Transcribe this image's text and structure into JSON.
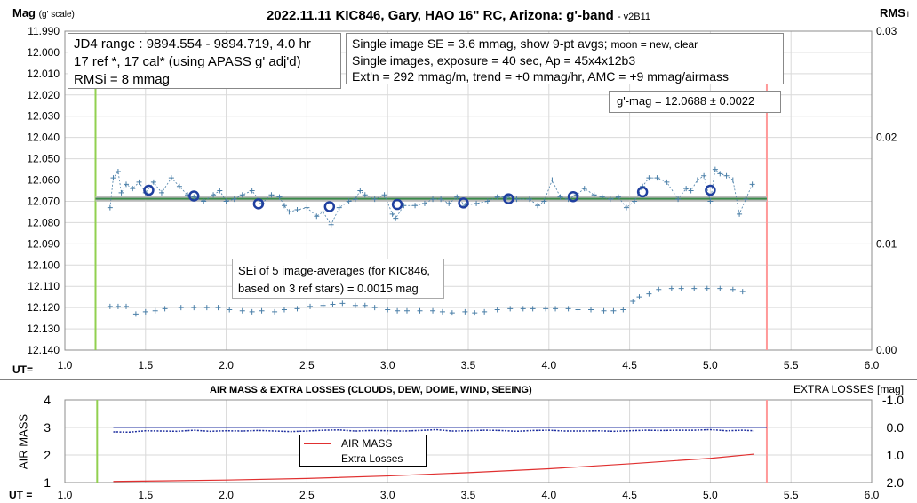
{
  "colors": {
    "background": "#ffffff",
    "gridline": "#d9d9d9",
    "series_marker": "#4a7fa8",
    "avg_circle": "#1f3f9f",
    "trend_line": "#3b8a4a",
    "start_marker": "#92d050",
    "end_marker": "#ff9999",
    "airmass_line": "#e03030",
    "extra_losses_line": "#1f2f9f"
  },
  "chart_data": [
    {
      "type": "scatter",
      "title": "2022.11.11 KIC846, Gary, HAO 16\" RC, Arizona: g'-band",
      "title_suffix": "- v2B11",
      "ylabel": "Mag",
      "ylabel_note": "(g' scale)",
      "y2label": "RMS",
      "y2label_note": "i",
      "xlabel": "UT=",
      "xlim": [
        1.0,
        6.0
      ],
      "ylim": [
        12.14,
        11.99
      ],
      "y_reversed": true,
      "y2lim": [
        0.0,
        0.03
      ],
      "x_ticks": [
        "1.0",
        "1.5",
        "2.0",
        "2.5",
        "3.0",
        "3.5",
        "4.0",
        "4.5",
        "5.0",
        "5.5",
        "6.0"
      ],
      "y_ticks": [
        "11.990",
        "12.000",
        "12.010",
        "12.020",
        "12.030",
        "12.040",
        "12.050",
        "12.060",
        "12.070",
        "12.080",
        "12.090",
        "12.100",
        "12.110",
        "12.120",
        "12.130",
        "12.140"
      ],
      "y2_ticks": [
        "0.03",
        "0.02",
        "0.01",
        "0.00"
      ],
      "grid": true,
      "start_marker_x": 1.19,
      "end_marker_x": 5.35,
      "trend_line": {
        "y": 12.0688,
        "x": [
          1.19,
          5.35
        ]
      },
      "info_box_1": [
        "JD4 range : 9894.554 - 9894.719,  4.0 hr",
        "17 ref *, 17 cal* (using APASS g' adj'd)",
        "RMSi = 8 mmag"
      ],
      "info_box_2_line1": "Single image SE = 3.6 mmag, show  9-pt avgs;",
      "info_box_2_line1_small": "moon = new, clear",
      "info_box_2_lines": [
        "Single images, exposure = 40 sec, Ap = 45x4x12b3",
        "Ext'n = 292 mmag/m, trend = +0 mmag/hr, AMC = +9 mmag/airmass"
      ],
      "result_box": "g'-mag = 12.0688 ± 0.0022",
      "sei_box": [
        "SEi of 5 image-averages (for KIC846,",
        "based on 3 ref stars) = 0.0015 mag"
      ],
      "series": [
        {
          "kind": "single-image magnitudes",
          "x": [
            1.28,
            1.3,
            1.33,
            1.35,
            1.38,
            1.42,
            1.46,
            1.5,
            1.55,
            1.6,
            1.66,
            1.71,
            1.76,
            1.8,
            1.86,
            1.92,
            1.96,
            2.0,
            2.05,
            2.1,
            2.16,
            2.22,
            2.28,
            2.33,
            2.36,
            2.39,
            2.44,
            2.5,
            2.56,
            2.6,
            2.65,
            2.7,
            2.76,
            2.8,
            2.83,
            2.86,
            2.92,
            2.98,
            3.03,
            3.05,
            3.1,
            3.17,
            3.23,
            3.28,
            3.33,
            3.38,
            3.43,
            3.48,
            3.55,
            3.62,
            3.68,
            3.74,
            3.8,
            3.88,
            3.93,
            3.97,
            4.02,
            4.07,
            4.12,
            4.17,
            4.22,
            4.28,
            4.33,
            4.38,
            4.43,
            4.48,
            4.53,
            4.58,
            4.62,
            4.67,
            4.73,
            4.8,
            4.85,
            4.88,
            4.92,
            4.96,
            5.0,
            5.03,
            5.06,
            5.1,
            5.14,
            5.18,
            5.22,
            5.26
          ],
          "y": [
            12.073,
            12.059,
            12.056,
            12.066,
            12.062,
            12.064,
            12.061,
            12.066,
            12.061,
            12.066,
            12.059,
            12.063,
            12.067,
            12.068,
            12.07,
            12.067,
            12.065,
            12.07,
            12.069,
            12.067,
            12.065,
            12.071,
            12.067,
            12.068,
            12.072,
            12.075,
            12.074,
            12.073,
            12.077,
            12.075,
            12.081,
            12.073,
            12.07,
            12.069,
            12.065,
            12.067,
            12.069,
            12.067,
            12.076,
            12.078,
            12.072,
            12.072,
            12.071,
            12.069,
            12.069,
            12.071,
            12.068,
            12.072,
            12.071,
            12.07,
            12.068,
            12.068,
            12.069,
            12.069,
            12.072,
            12.07,
            12.06,
            12.068,
            12.069,
            12.067,
            12.064,
            12.067,
            12.068,
            12.069,
            12.068,
            12.073,
            12.07,
            12.063,
            12.059,
            12.059,
            12.061,
            12.069,
            12.064,
            12.065,
            12.06,
            12.058,
            12.07,
            12.055,
            12.057,
            12.058,
            12.06,
            12.076,
            12.069,
            12.062
          ]
        },
        {
          "kind": "9-pt averages",
          "x": [
            1.52,
            1.8,
            2.2,
            2.64,
            3.06,
            3.47,
            3.75,
            4.15,
            4.58,
            5.0
          ],
          "y": [
            12.0648,
            12.0675,
            12.0712,
            12.0725,
            12.0715,
            12.0708,
            12.0688,
            12.0678,
            12.0656,
            12.0648
          ]
        },
        {
          "kind": "RMSi (right axis)",
          "x": [
            1.28,
            1.33,
            1.38,
            1.44,
            1.5,
            1.56,
            1.62,
            1.72,
            1.8,
            1.88,
            1.95,
            2.02,
            2.1,
            2.16,
            2.22,
            2.3,
            2.36,
            2.44,
            2.52,
            2.6,
            2.66,
            2.72,
            2.8,
            2.86,
            2.92,
            3.0,
            3.06,
            3.12,
            3.2,
            3.28,
            3.34,
            3.4,
            3.48,
            3.54,
            3.6,
            3.68,
            3.76,
            3.84,
            3.9,
            3.98,
            4.04,
            4.12,
            4.18,
            4.26,
            4.34,
            4.4,
            4.46,
            4.52,
            4.56,
            4.62,
            4.68,
            4.76,
            4.82,
            4.9,
            4.98,
            5.06,
            5.14,
            5.2
          ],
          "y": [
            0.0041,
            0.0041,
            0.0041,
            0.0034,
            0.0036,
            0.0037,
            0.0039,
            0.004,
            0.004,
            0.004,
            0.004,
            0.0038,
            0.0037,
            0.0036,
            0.0037,
            0.0036,
            0.0038,
            0.0039,
            0.0041,
            0.0042,
            0.0043,
            0.0044,
            0.0042,
            0.0042,
            0.004,
            0.0038,
            0.0037,
            0.0037,
            0.0037,
            0.0037,
            0.0036,
            0.0035,
            0.0036,
            0.0035,
            0.0036,
            0.0038,
            0.0039,
            0.0039,
            0.0039,
            0.0039,
            0.0039,
            0.0039,
            0.0038,
            0.0038,
            0.0037,
            0.0037,
            0.0038,
            0.0046,
            0.005,
            0.0053,
            0.0057,
            0.0058,
            0.0058,
            0.0058,
            0.0058,
            0.0058,
            0.0057,
            0.0055
          ]
        }
      ]
    },
    {
      "type": "line",
      "title": "AIR MASS & EXTRA LOSSES (CLOUDS, DEW, DOME, WIND, SEEING)",
      "ylabel": "AIR MASS",
      "y2label": "EXTRA LOSSES [mag]",
      "xlabel": "UT =",
      "xlim": [
        1.0,
        6.0
      ],
      "ylim": [
        1,
        4
      ],
      "y2lim": [
        2.0,
        -1.0
      ],
      "x_ticks": [
        "1.0",
        "1.5",
        "2.0",
        "2.5",
        "3.0",
        "3.5",
        "4.0",
        "4.5",
        "5.0",
        "5.5",
        "6.0"
      ],
      "y_ticks": [
        "4",
        "3",
        "2",
        "1"
      ],
      "y2_ticks": [
        "-1.0",
        "0.0",
        "1.0",
        "2.0"
      ],
      "grid": true,
      "start_marker_x": 1.2,
      "end_marker_x": 5.35,
      "reference_line_y": 3.0,
      "series": [
        {
          "name": "AIR MASS",
          "x": [
            1.3,
            1.6,
            2.0,
            2.5,
            3.0,
            3.5,
            4.0,
            4.5,
            5.0,
            5.27
          ],
          "y": [
            1.04,
            1.06,
            1.09,
            1.15,
            1.24,
            1.36,
            1.5,
            1.68,
            1.88,
            2.03
          ]
        },
        {
          "name": "Extra Losses",
          "x": [
            1.3,
            1.4,
            1.5,
            1.6,
            1.7,
            1.8,
            1.9,
            2.0,
            2.1,
            2.2,
            2.3,
            2.4,
            2.5,
            2.6,
            2.7,
            2.8,
            2.9,
            3.0,
            3.1,
            3.2,
            3.3,
            3.4,
            3.5,
            3.6,
            3.7,
            3.8,
            3.9,
            4.0,
            4.1,
            4.2,
            4.3,
            4.4,
            4.5,
            4.6,
            4.7,
            4.8,
            4.9,
            5.0,
            5.1,
            5.2,
            5.27
          ],
          "y": [
            0.16,
            0.17,
            0.12,
            0.13,
            0.14,
            0.1,
            0.14,
            0.12,
            0.13,
            0.11,
            0.13,
            0.15,
            0.13,
            0.1,
            0.09,
            0.13,
            0.11,
            0.12,
            0.13,
            0.11,
            0.08,
            0.13,
            0.12,
            0.1,
            0.11,
            0.14,
            0.11,
            0.1,
            0.13,
            0.13,
            0.12,
            0.14,
            0.12,
            0.1,
            0.11,
            0.1,
            0.1,
            0.08,
            0.12,
            0.1,
            0.12
          ]
        }
      ]
    }
  ]
}
